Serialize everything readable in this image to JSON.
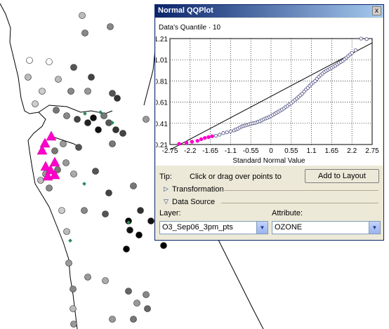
{
  "window": {
    "title": "Normal QQPlot",
    "close_glyph": "x"
  },
  "chart_data": {
    "type": "scatter",
    "ylabel": "Data's Quantile · 10",
    "xlabel": "Standard Normal Value",
    "xlim": [
      -2.75,
      2.75
    ],
    "ylim": [
      0.21,
      1.21
    ],
    "xticks": [
      "-2.75",
      "-2.2",
      "-1.65",
      "-1.1",
      "-0.55",
      "0",
      "0.55",
      "1.1",
      "1.65",
      "2.2",
      "2.75"
    ],
    "yticks": [
      "0.21",
      "0.41",
      "0.61",
      "0.81",
      "1.01",
      "1.21"
    ],
    "grid": true,
    "reference_line": {
      "x": [
        -2.75,
        2.75
      ],
      "y": [
        0.16,
        1.17
      ]
    },
    "series": [
      {
        "color": "#ff00cc",
        "points": [
          [
            -2.5,
            0.216
          ],
          [
            -2.3,
            0.226
          ],
          [
            -2.15,
            0.236
          ],
          [
            -2.0,
            0.245
          ],
          [
            -1.9,
            0.26
          ],
          [
            -1.8,
            0.272
          ],
          [
            -1.7,
            0.28
          ],
          [
            -1.6,
            0.288
          ]
        ]
      },
      {
        "color": "#5a5a8a",
        "points": [
          [
            -1.5,
            0.293
          ],
          [
            -1.4,
            0.303
          ],
          [
            -1.3,
            0.318
          ],
          [
            -1.2,
            0.325
          ],
          [
            -1.1,
            0.333
          ],
          [
            -1.0,
            0.343
          ],
          [
            -0.95,
            0.352
          ],
          [
            -0.9,
            0.36
          ],
          [
            -0.85,
            0.37
          ],
          [
            -0.8,
            0.38
          ],
          [
            -0.75,
            0.385
          ],
          [
            -0.7,
            0.39
          ],
          [
            -0.65,
            0.395
          ],
          [
            -0.6,
            0.4
          ],
          [
            -0.55,
            0.405
          ],
          [
            -0.5,
            0.41
          ],
          [
            -0.45,
            0.412
          ],
          [
            -0.4,
            0.418
          ],
          [
            -0.35,
            0.425
          ],
          [
            -0.3,
            0.43
          ],
          [
            -0.25,
            0.44
          ],
          [
            -0.2,
            0.448
          ],
          [
            -0.15,
            0.456
          ],
          [
            -0.1,
            0.462
          ],
          [
            -0.05,
            0.47
          ],
          [
            0.0,
            0.48
          ],
          [
            0.05,
            0.49
          ],
          [
            0.1,
            0.5
          ],
          [
            0.15,
            0.51
          ],
          [
            0.2,
            0.52
          ],
          [
            0.25,
            0.53
          ],
          [
            0.3,
            0.54
          ],
          [
            0.35,
            0.55
          ],
          [
            0.4,
            0.565
          ],
          [
            0.45,
            0.575
          ],
          [
            0.5,
            0.59
          ],
          [
            0.55,
            0.6
          ],
          [
            0.6,
            0.615
          ],
          [
            0.65,
            0.63
          ],
          [
            0.7,
            0.645
          ],
          [
            0.75,
            0.66
          ],
          [
            0.8,
            0.675
          ],
          [
            0.85,
            0.69
          ],
          [
            0.9,
            0.71
          ],
          [
            0.95,
            0.73
          ],
          [
            1.0,
            0.745
          ],
          [
            1.05,
            0.765
          ],
          [
            1.1,
            0.78
          ],
          [
            1.15,
            0.795
          ],
          [
            1.2,
            0.81
          ],
          [
            1.25,
            0.83
          ],
          [
            1.3,
            0.85
          ],
          [
            1.35,
            0.865
          ],
          [
            1.4,
            0.88
          ],
          [
            1.45,
            0.895
          ],
          [
            1.5,
            0.905
          ],
          [
            1.55,
            0.915
          ],
          [
            1.6,
            0.925
          ],
          [
            1.65,
            0.935
          ],
          [
            1.7,
            0.945
          ],
          [
            1.75,
            0.955
          ],
          [
            1.8,
            0.968
          ],
          [
            1.85,
            0.98
          ],
          [
            1.9,
            0.99
          ],
          [
            1.95,
            1.0
          ],
          [
            2.0,
            1.015
          ],
          [
            2.05,
            1.03
          ],
          [
            2.1,
            1.045
          ],
          [
            2.15,
            1.06
          ],
          [
            2.2,
            1.075
          ],
          [
            2.3,
            1.1
          ],
          [
            2.45,
            1.21
          ],
          [
            2.6,
            1.205
          ]
        ]
      }
    ]
  },
  "tip": {
    "label": "Tip:",
    "text": "Click or drag over points to"
  },
  "add_layout_button": "Add to Layout",
  "sections": {
    "transformation": "Transformation",
    "data_source": "Data Source"
  },
  "layer": {
    "label": "Layer:",
    "value": "O3_Sep06_3pm_pts"
  },
  "attribute": {
    "label": "Attribute:",
    "value": "OZONE"
  },
  "colors": {
    "highlight": "#ff00cc",
    "title_gradient_start": "#0a246a",
    "title_gradient_end": "#a6caf0"
  }
}
